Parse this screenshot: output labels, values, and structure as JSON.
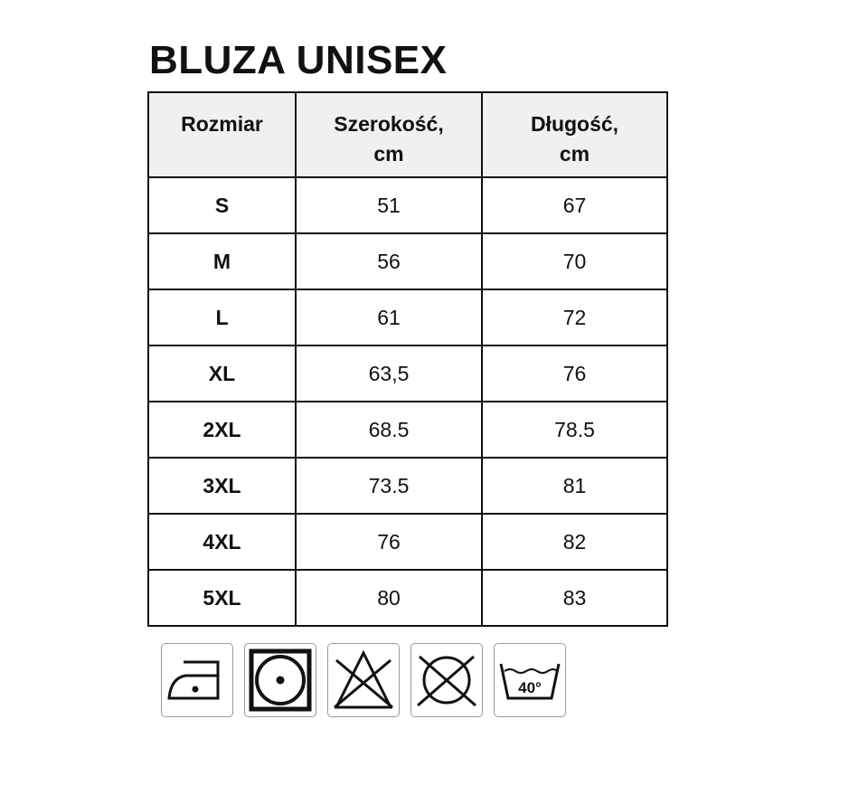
{
  "title": "BLUZA UNISEX",
  "table": {
    "headers": [
      "Rozmiar",
      "Szerokość,\ncm",
      "Długość,\ncm"
    ],
    "header_lines": [
      [
        "Rozmiar"
      ],
      [
        "Szerokość,",
        "cm"
      ],
      [
        "Długość,",
        "cm"
      ]
    ],
    "rows": [
      [
        "S",
        "51",
        "67"
      ],
      [
        "M",
        "56",
        "70"
      ],
      [
        "L",
        "61",
        "72"
      ],
      [
        "XL",
        "63,5",
        "76"
      ],
      [
        "2XL",
        "68.5",
        "78.5"
      ],
      [
        "3XL",
        "73.5",
        "81"
      ],
      [
        "4XL",
        "76",
        "82"
      ],
      [
        "5XL",
        "80",
        "83"
      ]
    ]
  },
  "care_icons": [
    "iron-low-heat-icon",
    "tumble-dry-icon",
    "do-not-bleach-icon",
    "do-not-dry-clean-icon",
    "wash-40-icon"
  ],
  "wash_temp": "40°"
}
